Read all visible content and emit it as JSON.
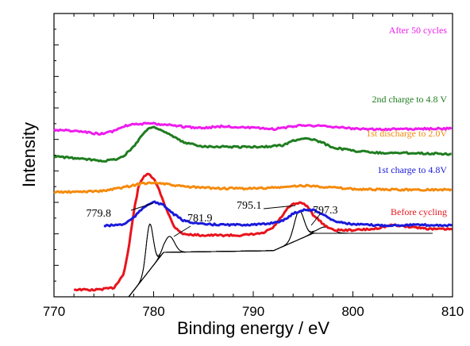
{
  "chart_data": {
    "type": "line",
    "xlabel": "Binding energy / eV",
    "ylabel": "Intensity",
    "xlim": [
      770,
      810
    ],
    "xticks": [
      "770",
      "780",
      "790",
      "800",
      "810"
    ],
    "y_tick_labels": "none",
    "series": [
      {
        "name": "Before cycling",
        "color": "#e8141c",
        "offset_level": 0,
        "x": [
          772,
          774,
          776,
          777,
          777.5,
          778,
          778.5,
          779,
          779.5,
          780,
          780.5,
          781,
          782,
          783,
          785,
          787,
          789,
          791,
          792,
          793,
          793.5,
          794,
          794.5,
          795,
          795.5,
          796,
          797,
          798,
          800,
          802,
          804,
          806,
          808,
          810
        ],
        "values": [
          0.05,
          0.04,
          0.08,
          0.35,
          0.85,
          1.55,
          2.05,
          2.25,
          2.28,
          2.2,
          2.0,
          1.75,
          1.28,
          1.12,
          1.1,
          1.1,
          1.1,
          1.14,
          1.25,
          1.5,
          1.63,
          1.7,
          1.72,
          1.72,
          1.65,
          1.5,
          1.32,
          1.2,
          1.2,
          1.22,
          1.3,
          1.26,
          1.22,
          1.22
        ]
      },
      {
        "name": "1st charge to 4.8V",
        "color": "#1a1adb",
        "offset_level": 1,
        "x": [
          775,
          777,
          778,
          779,
          779.5,
          780,
          780.5,
          781,
          782,
          783,
          785,
          788,
          791,
          793,
          794,
          795,
          796,
          797,
          798,
          800,
          803,
          806,
          810
        ],
        "values": [
          0.02,
          0.05,
          0.18,
          0.38,
          0.45,
          0.48,
          0.46,
          0.42,
          0.25,
          0.12,
          0.05,
          0.04,
          0.05,
          0.12,
          0.26,
          0.33,
          0.33,
          0.25,
          0.12,
          0.05,
          0.03,
          0.04,
          0.03
        ]
      },
      {
        "name": "1st discharge to 2.0V",
        "color": "#f58a0c",
        "offset_level": 2,
        "x": [
          770,
          772,
          775,
          777,
          779,
          780,
          781,
          782,
          784,
          787,
          790,
          793,
          795,
          797,
          800,
          803,
          806,
          810
        ],
        "values": [
          0.0,
          0.0,
          0.02,
          0.08,
          0.15,
          0.16,
          0.14,
          0.11,
          0.08,
          0.06,
          0.06,
          0.08,
          0.11,
          0.09,
          0.05,
          0.04,
          0.04,
          0.04
        ]
      },
      {
        "name": "2nd charge to 4.8 V",
        "color": "#1f7d1f",
        "offset_level": 3,
        "x": [
          770,
          773,
          775,
          776,
          777,
          778,
          779,
          779.5,
          780,
          780.5,
          781,
          782,
          783,
          785,
          788,
          791,
          793,
          794,
          795,
          796,
          797,
          798,
          800,
          803,
          806,
          810
        ],
        "values": [
          0.0,
          -0.05,
          -0.08,
          -0.06,
          0.0,
          0.18,
          0.42,
          0.5,
          0.53,
          0.5,
          0.45,
          0.35,
          0.25,
          0.18,
          0.17,
          0.17,
          0.2,
          0.28,
          0.33,
          0.3,
          0.24,
          0.16,
          0.1,
          0.06,
          0.06,
          0.04
        ]
      },
      {
        "name": "After 50 cycles",
        "color": "#ee1cee",
        "offset_level": 4,
        "x": [
          770,
          772,
          774,
          775,
          776,
          777,
          778,
          780,
          782,
          783,
          785,
          787,
          790,
          792,
          795,
          798,
          800,
          802,
          805,
          808,
          810
        ],
        "values": [
          0.02,
          0.0,
          -0.04,
          -0.05,
          0.0,
          0.08,
          0.12,
          0.12,
          0.1,
          0.07,
          0.05,
          0.08,
          0.05,
          0.03,
          0.1,
          0.07,
          0.04,
          0.03,
          0.03,
          0.04,
          0.04
        ]
      }
    ],
    "fitted_peaks": {
      "color": "#000000",
      "annotations": [
        {
          "label": "779.8",
          "x": 779.6
        },
        {
          "label": "781.9",
          "x": 781.6
        },
        {
          "label": "795.1",
          "x": 794.6
        },
        {
          "label": "797.3",
          "x": 797.2
        }
      ]
    }
  }
}
